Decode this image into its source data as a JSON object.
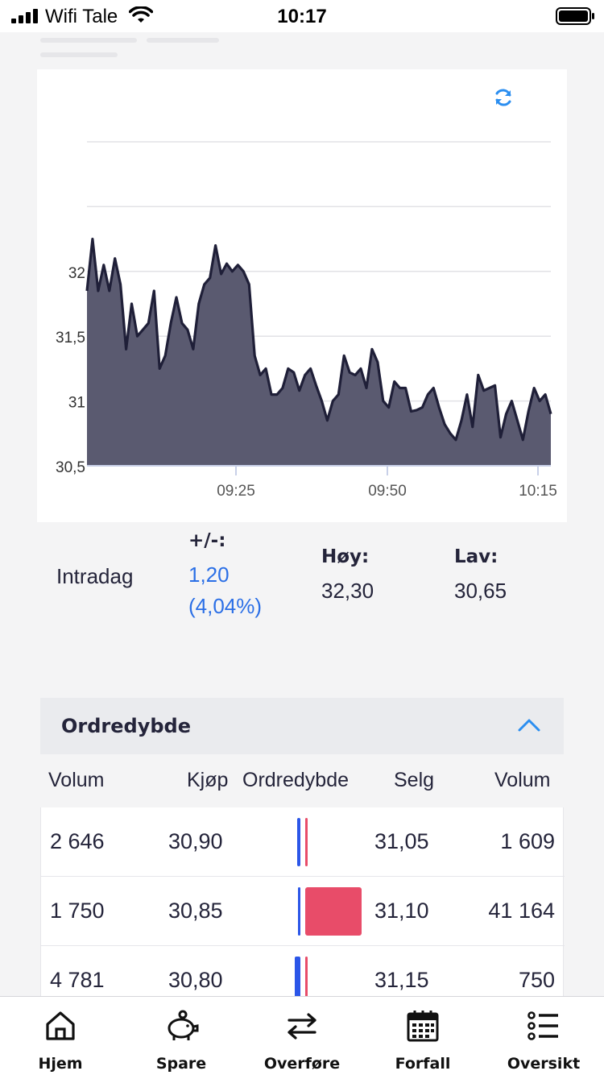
{
  "status_bar": {
    "carrier": "Wifi Tale",
    "time": "10:17"
  },
  "chart_data": {
    "type": "area",
    "x_ticks": [
      "09:25",
      "09:50",
      "10:15"
    ],
    "y_ticks": [
      "32",
      "31,5",
      "31",
      "30,5"
    ],
    "ylim": [
      30.5,
      33.0
    ],
    "grid": true,
    "colors": {
      "fill": "#5a5a70",
      "line": "#1f1f38"
    },
    "series": [
      {
        "values": [
          31.85,
          32.25,
          31.85,
          32.05,
          31.85,
          32.1,
          31.9,
          31.4,
          31.75,
          31.5,
          31.55,
          31.6,
          31.85,
          31.25,
          31.35,
          31.6,
          31.8,
          31.6,
          31.55,
          31.4,
          31.75,
          31.9,
          31.95,
          32.2,
          31.98,
          32.06,
          32.0,
          32.05,
          32.0,
          31.9,
          31.35,
          31.2,
          31.25,
          31.05,
          31.05,
          31.1,
          31.25,
          31.22,
          31.08,
          31.2,
          31.25,
          31.12,
          31.0,
          30.85,
          31.0,
          31.05,
          31.35,
          31.22,
          31.2,
          31.25,
          31.1,
          31.4,
          31.3,
          31.0,
          30.95,
          31.15,
          31.1,
          31.1,
          30.92,
          30.93,
          30.95,
          31.05,
          31.1,
          30.95,
          30.82,
          30.75,
          30.7,
          30.85,
          31.05,
          30.8,
          31.2,
          31.08,
          31.1,
          31.12,
          30.72,
          30.9,
          31.0,
          30.85,
          30.7,
          30.92,
          31.1,
          31.0,
          31.05,
          30.9
        ]
      }
    ]
  },
  "intraday": {
    "label": "Intradag",
    "change_label": "+/-:",
    "change_value": "1,20",
    "change_pct": "(4,04%)",
    "high_label": "Høy:",
    "high_value": "32,30",
    "low_label": "Lav:",
    "low_value": "30,65"
  },
  "order_depth": {
    "title": "Ordredybde",
    "columns": [
      "Volum",
      "Kjøp",
      "Ordredybde",
      "Selg",
      "Volum"
    ],
    "rows": [
      {
        "buy_volume": "2 646",
        "buy_price": "30,90",
        "sell_price": "31,05",
        "sell_volume": "1 609",
        "buy_share": 0.06,
        "sell_share": 0.04
      },
      {
        "buy_volume": "1 750",
        "buy_price": "30,85",
        "sell_price": "31,10",
        "sell_volume": "41 164",
        "buy_share": 0.04,
        "sell_share": 1.0
      },
      {
        "buy_volume": "4 781",
        "buy_price": "30,80",
        "sell_price": "31,15",
        "sell_volume": "750",
        "buy_share": 0.12,
        "sell_share": 0.02
      }
    ],
    "colors": {
      "buy": "#2b56e8",
      "sell": "#e84c69"
    }
  },
  "tabbar": {
    "items": [
      {
        "label": "Hjem",
        "icon": "home-icon"
      },
      {
        "label": "Spare",
        "icon": "piggy-bank-icon"
      },
      {
        "label": "Overføre",
        "icon": "transfer-arrows-icon"
      },
      {
        "label": "Forfall",
        "icon": "calendar-icon"
      },
      {
        "label": "Oversikt",
        "icon": "list-icon"
      }
    ]
  }
}
